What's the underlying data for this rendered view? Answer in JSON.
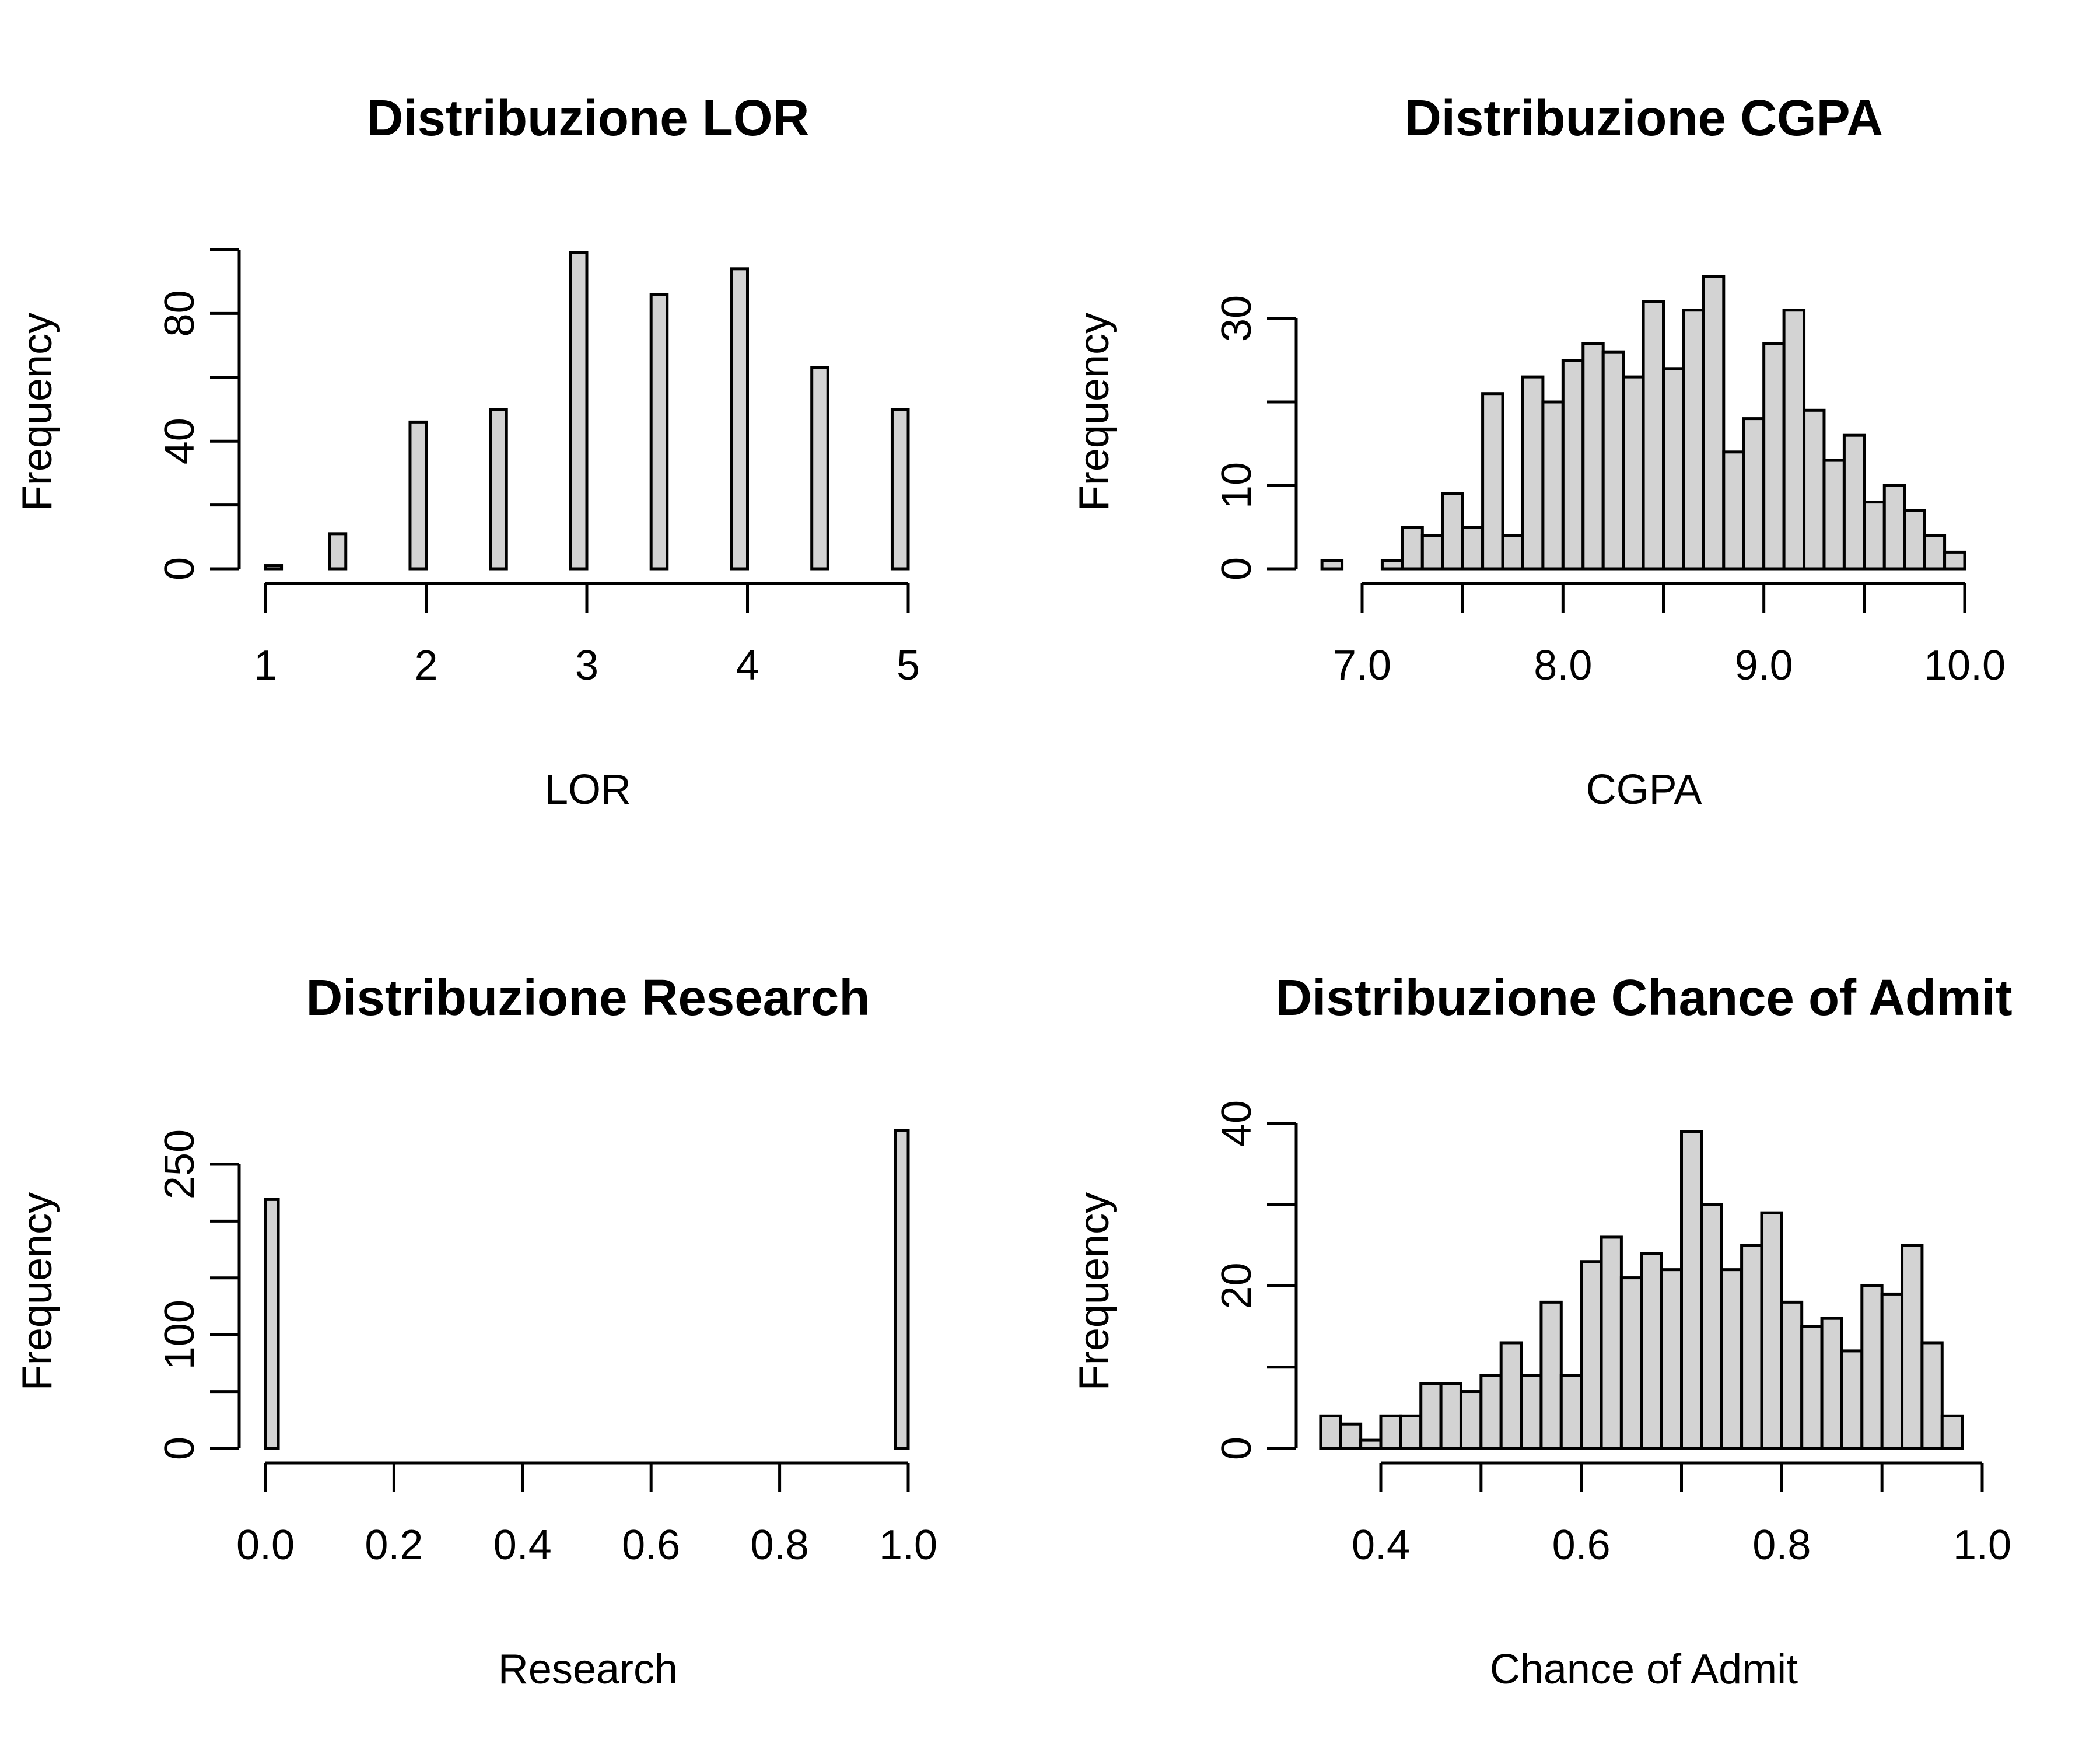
{
  "colors": {
    "bar_fill": "#d3d3d3",
    "stroke": "#000000",
    "background": "#ffffff"
  },
  "chart_data": [
    {
      "type": "bar",
      "title": "Distribuzione LOR",
      "xlabel": "LOR",
      "ylabel": "Frequency",
      "xlim": [
        1,
        5
      ],
      "ylim": [
        0,
        100
      ],
      "x_ticks": [
        1,
        2,
        3,
        4,
        5
      ],
      "x_tick_labels": [
        "1",
        "2",
        "3",
        "4",
        "5"
      ],
      "y_ticks": [
        0,
        20,
        40,
        60,
        80,
        100
      ],
      "y_tick_labels": [
        "0",
        "",
        "40",
        "",
        "80",
        ""
      ],
      "bin_edges": [
        1.0,
        1.1,
        1.4,
        1.5,
        1.9,
        2.0,
        2.4,
        2.5,
        2.9,
        3.0,
        3.4,
        3.5,
        3.9,
        4.0,
        4.4,
        4.5,
        4.9,
        5.0
      ],
      "values": [
        1,
        0,
        11,
        0,
        46,
        0,
        50,
        0,
        99,
        0,
        86,
        0,
        94,
        0,
        63,
        0,
        50
      ],
      "grid": false
    },
    {
      "type": "bar",
      "title": "Distribuzione CGPA",
      "xlabel": "CGPA",
      "ylabel": "Frequency",
      "xlim": [
        7.0,
        10.0
      ],
      "ylim": [
        0,
        30
      ],
      "x_ticks": [
        7.0,
        7.5,
        8.0,
        8.5,
        9.0,
        9.5,
        10.0
      ],
      "x_tick_labels": [
        "7.0",
        "",
        "8.0",
        "",
        "9.0",
        "",
        "10.0"
      ],
      "y_ticks": [
        0,
        10,
        20,
        30
      ],
      "y_tick_labels": [
        "0",
        "10",
        "",
        "30"
      ],
      "bin_start": 6.8,
      "bin_width": 0.1,
      "values": [
        1,
        0,
        0,
        1,
        5,
        4,
        9,
        5,
        21,
        4,
        23,
        20,
        25,
        27,
        26,
        23,
        32,
        24,
        31,
        35,
        14,
        18,
        27,
        31,
        19,
        13,
        16,
        8,
        10,
        7,
        4,
        2
      ],
      "grid": false
    },
    {
      "type": "bar",
      "title": "Distribuzione Research",
      "xlabel": "Research",
      "ylabel": "Frequency",
      "xlim": [
        0.0,
        1.0
      ],
      "ylim": [
        0,
        250
      ],
      "x_ticks": [
        0.0,
        0.2,
        0.4,
        0.6,
        0.8,
        1.0
      ],
      "x_tick_labels": [
        "0.0",
        "0.2",
        "0.4",
        "0.6",
        "0.8",
        "1.0"
      ],
      "y_ticks": [
        0,
        50,
        100,
        150,
        200,
        250
      ],
      "y_tick_labels": [
        "0",
        "",
        "100",
        "",
        "",
        "250"
      ],
      "bin_start": 0.0,
      "bin_width": 0.02,
      "values": [
        219,
        0,
        0,
        0,
        0,
        0,
        0,
        0,
        0,
        0,
        0,
        0,
        0,
        0,
        0,
        0,
        0,
        0,
        0,
        0,
        0,
        0,
        0,
        0,
        0,
        0,
        0,
        0,
        0,
        0,
        0,
        0,
        0,
        0,
        0,
        0,
        0,
        0,
        0,
        0,
        0,
        0,
        0,
        0,
        0,
        0,
        0,
        0,
        0,
        280
      ],
      "grid": false
    },
    {
      "type": "bar",
      "title": "Distribuzione Chance of Admit",
      "xlabel": "Chance of Admit",
      "ylabel": "Frequency",
      "xlim": [
        0.4,
        1.0
      ],
      "ylim": [
        0,
        40
      ],
      "x_ticks": [
        0.4,
        0.5,
        0.6,
        0.7,
        0.8,
        0.9,
        1.0
      ],
      "x_tick_labels": [
        "0.4",
        "",
        "0.6",
        "",
        "0.8",
        "",
        "1.0"
      ],
      "y_ticks": [
        0,
        10,
        20,
        30,
        40
      ],
      "y_tick_labels": [
        "0",
        "",
        "20",
        "",
        "40"
      ],
      "bin_start": 0.34,
      "bin_width": 0.02,
      "values": [
        4,
        3,
        1,
        4,
        4,
        8,
        8,
        7,
        9,
        13,
        9,
        18,
        9,
        23,
        26,
        21,
        24,
        22,
        39,
        30,
        22,
        25,
        29,
        18,
        15,
        16,
        12,
        20,
        19,
        25,
        13,
        4
      ],
      "grid": false
    }
  ]
}
